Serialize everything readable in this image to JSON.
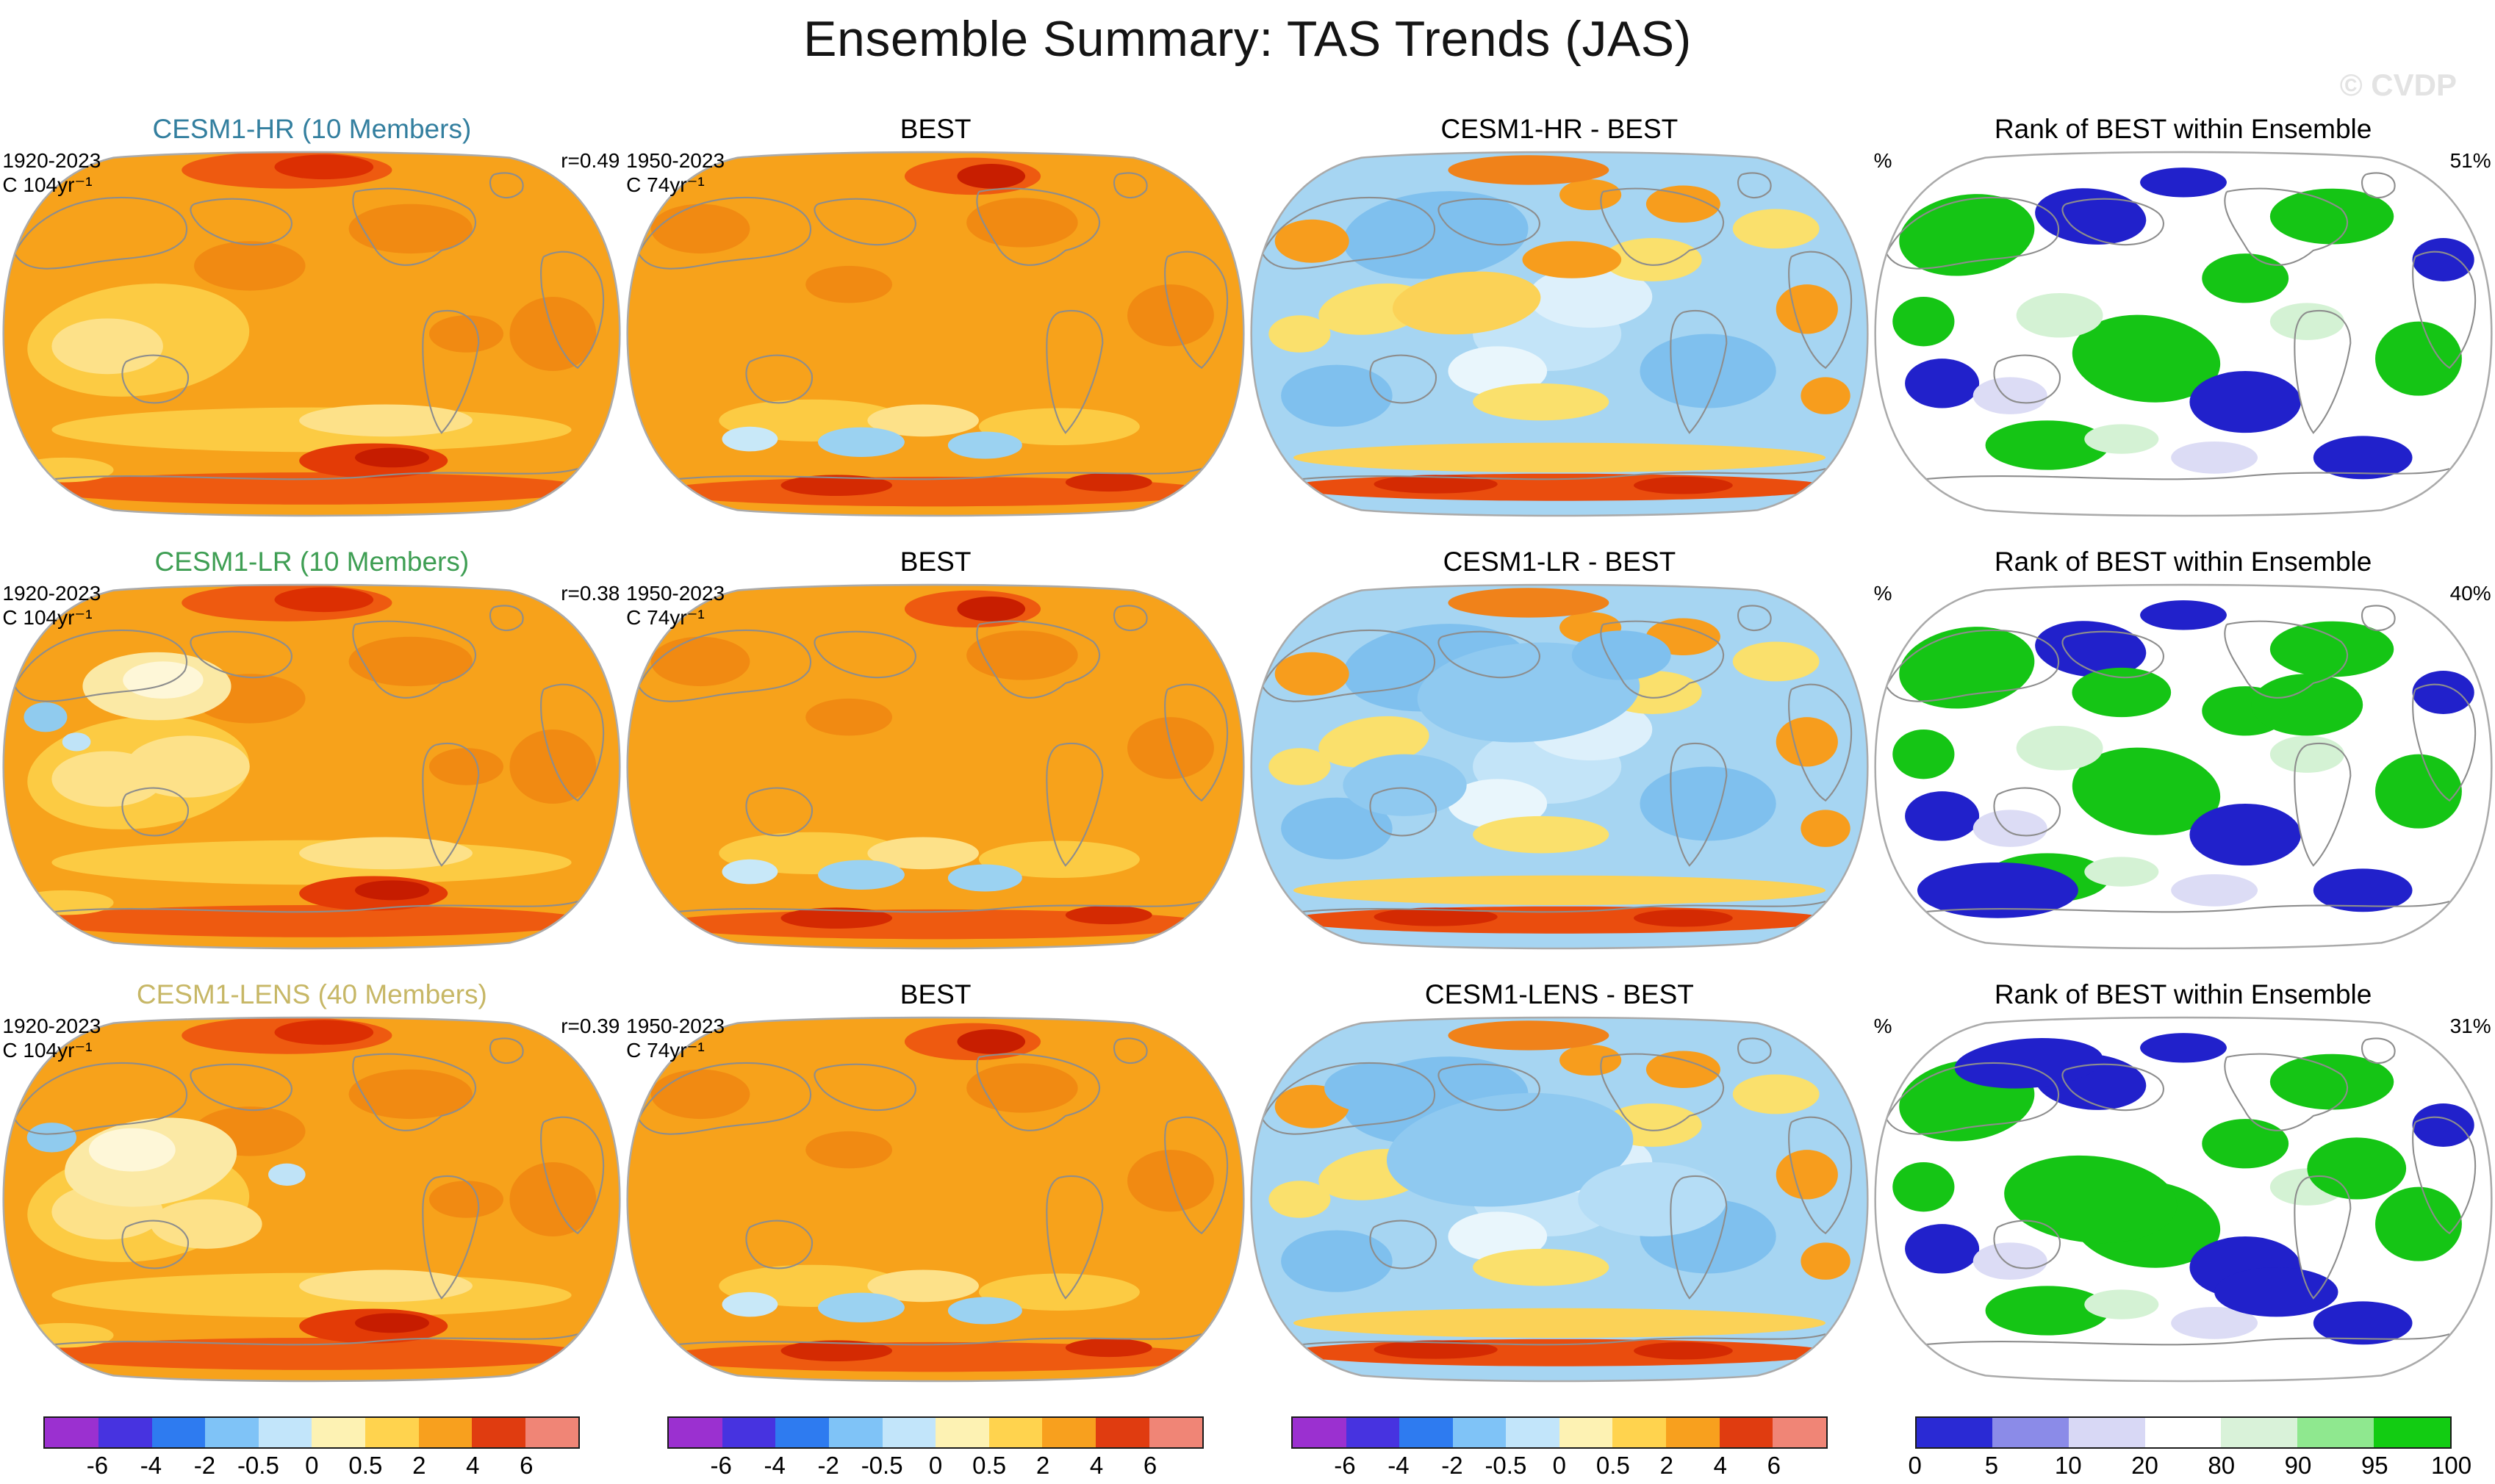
{
  "header": {
    "title": "Ensemble Summary: TAS Trends (JAS)",
    "watermark": "© CVDP"
  },
  "chart_data": {
    "type": "heatmap",
    "title": "Ensemble Summary: TAS Trends (JAS)",
    "variable": "TAS",
    "season": "JAS",
    "layout": "3 rows x 4 columns of global filled-contour maps with shared colorbars at bottom",
    "panels": [
      {
        "title": "CESM1-HR (10 Members)",
        "color": "#337F9F",
        "left1": "1920-2023",
        "left2": "C 104yr⁻¹",
        "right": "r=0.49",
        "map": "trend"
      },
      {
        "title": "BEST",
        "color": "#000000",
        "left1": "1950-2023",
        "left2": "C 74yr⁻¹",
        "right": "",
        "map": "obs"
      },
      {
        "title": "CESM1-HR - BEST",
        "color": "#000000",
        "left1": "",
        "left2": "",
        "right": "",
        "map": "diff"
      },
      {
        "title": "Rank of BEST within Ensemble",
        "color": "#000000",
        "left1": "%",
        "left2": "",
        "right": "51%",
        "map": "rank"
      },
      {
        "title": "CESM1-LR (10 Members)",
        "color": "#3E9E53",
        "left1": "1920-2023",
        "left2": "C 104yr⁻¹",
        "right": "r=0.38",
        "map": "trend"
      },
      {
        "title": "BEST",
        "color": "#000000",
        "left1": "1950-2023",
        "left2": "C 74yr⁻¹",
        "right": "",
        "map": "obs"
      },
      {
        "title": "CESM1-LR - BEST",
        "color": "#000000",
        "left1": "",
        "left2": "",
        "right": "",
        "map": "diff"
      },
      {
        "title": "Rank of BEST within Ensemble",
        "color": "#000000",
        "left1": "%",
        "left2": "",
        "right": "40%",
        "map": "rank"
      },
      {
        "title": "CESM1-LENS (40 Members)",
        "color": "#C7B766",
        "left1": "1920-2023",
        "left2": "C 104yr⁻¹",
        "right": "r=0.39",
        "map": "trend"
      },
      {
        "title": "BEST",
        "color": "#000000",
        "left1": "1950-2023",
        "left2": "C 74yr⁻¹",
        "right": "",
        "map": "obs"
      },
      {
        "title": "CESM1-LENS - BEST",
        "color": "#000000",
        "left1": "",
        "left2": "",
        "right": "",
        "map": "diff"
      },
      {
        "title": "Rank of BEST within Ensemble",
        "color": "#000000",
        "left1": "%",
        "left2": "",
        "right": "31%",
        "map": "rank"
      }
    ],
    "statistics": {
      "ensembles": [
        "CESM1-HR (10 Members)",
        "CESM1-LR (10 Members)",
        "CESM1-LENS (40 Members)"
      ],
      "observation_dataset": "BEST",
      "ensemble_period": "1920-2023",
      "ensemble_units": "C 104yr⁻¹",
      "obs_period": "1950-2023",
      "obs_units": "C 74yr⁻¹",
      "pattern_correlations_r": [
        0.49,
        0.38,
        0.39
      ],
      "rank_of_best_percent": [
        51,
        40,
        31
      ]
    },
    "colorbars": {
      "trend": {
        "ticks": [
          "-6",
          "-4",
          "-2",
          "-0.5",
          "0",
          "0.5",
          "2",
          "4",
          "6"
        ],
        "tick_mode": "internal",
        "colors": [
          "#9B30D0",
          "#4733E0",
          "#2E7BF0",
          "#7FC3F7",
          "#C2E5FA",
          "#FDF2B3",
          "#FFD34E",
          "#F8A01E",
          "#E03C10",
          "#F08576"
        ]
      },
      "rank": {
        "ticks": [
          "0",
          "5",
          "10",
          "20",
          "80",
          "90",
          "95",
          "100"
        ],
        "tick_mode": "edges",
        "colors": [
          "#2A2AD4",
          "#8B8BE8",
          "#D8D8F5",
          "#FFFFFF",
          "#D9F2D9",
          "#8FE88F",
          "#12CC12"
        ]
      }
    },
    "colorbar_layout": [
      "trend",
      "trend",
      "trend",
      "rank"
    ]
  }
}
